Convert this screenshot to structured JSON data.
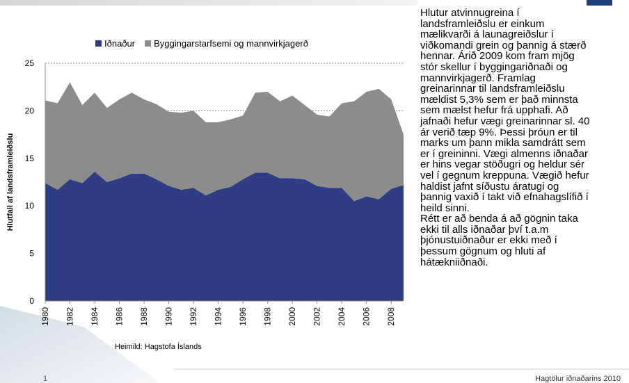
{
  "chart_data": {
    "type": "stacked-area",
    "x": [
      1980,
      1981,
      1982,
      1983,
      1984,
      1985,
      1986,
      1987,
      1988,
      1989,
      1990,
      1991,
      1992,
      1993,
      1994,
      1995,
      1996,
      1997,
      1998,
      1999,
      2000,
      2001,
      2002,
      2003,
      2004,
      2005,
      2006,
      2007,
      2008,
      2009
    ],
    "series": [
      {
        "name": "Iðnaður",
        "color": "#2f3d84",
        "values": [
          12.4,
          11.7,
          12.8,
          12.4,
          13.6,
          12.5,
          12.9,
          13.4,
          13.4,
          12.8,
          12.1,
          11.7,
          11.9,
          11.1,
          11.7,
          12.0,
          12.8,
          13.5,
          13.5,
          12.9,
          12.9,
          12.8,
          12.1,
          11.9,
          11.9,
          10.5,
          11.0,
          10.7,
          11.8,
          12.2
        ]
      },
      {
        "name": "Byggingarstarfsemi og mannvirkjagerð",
        "color": "#8c8c8c",
        "values": [
          8.7,
          9.1,
          10.2,
          8.2,
          8.3,
          7.8,
          8.3,
          8.5,
          7.8,
          7.9,
          7.8,
          8.1,
          8.1,
          7.7,
          7.1,
          7.1,
          6.7,
          8.4,
          8.5,
          8.1,
          8.7,
          7.8,
          7.5,
          7.5,
          8.9,
          10.5,
          11.0,
          11.6,
          9.4,
          5.3
        ]
      }
    ],
    "xlim": [
      1980,
      2009
    ],
    "xticks": [
      1980,
      1982,
      1984,
      1986,
      1988,
      1990,
      1992,
      1994,
      1996,
      1998,
      2000,
      2002,
      2004,
      2006,
      2008
    ],
    "ylim": [
      0,
      25
    ],
    "yticks": [
      0,
      5,
      10,
      15,
      20,
      25
    ],
    "grid": true,
    "ylabel": "Hlutfall af landsframleiðslu",
    "source": "Heimild: Hagstofa Íslands"
  },
  "text_lines": [
    "Hlutur atvinnugreina í",
    "landsframleiðslu er einkum",
    "mælikvarði á launagreiðslur í",
    "viðkomandi grein og þannig á stærð",
    "hennar. Árið 2009 kom fram mjög",
    "stór skellur í byggingariðnaði og",
    "mannvirkjagerð. Framlag",
    "greinarinnar til landsframleiðslu",
    "mældist 5,3% sem er það minnsta",
    "sem mælst hefur frá upphafi. Að",
    "jafnaði hefur vægi greinarinnar sl. 40",
    "ár verið tæp 9%. Þessi þróun er til",
    "marks um þann mikla samdrátt sem",
    "er í greininni. Vægi almenns iðnaðar",
    "er hins vegar stöðugri og heldur sér",
    "vel í gegnum kreppuna. Vægið hefur",
    "haldist jafnt síðustu áratugi og",
    "þannig vaxið í takt við efnahagslífið í",
    "heild sinni.",
    "Rétt er að benda á að gögnin taka",
    "ekki til alls iðnaðar því t.a.m",
    "þjónustuiðnaður er ekki með í",
    "þessum gögnum og hluti af",
    "hátækniiðnaði."
  ],
  "footer": "Hagtölur iðnaðarins 2010",
  "page_number": "1"
}
